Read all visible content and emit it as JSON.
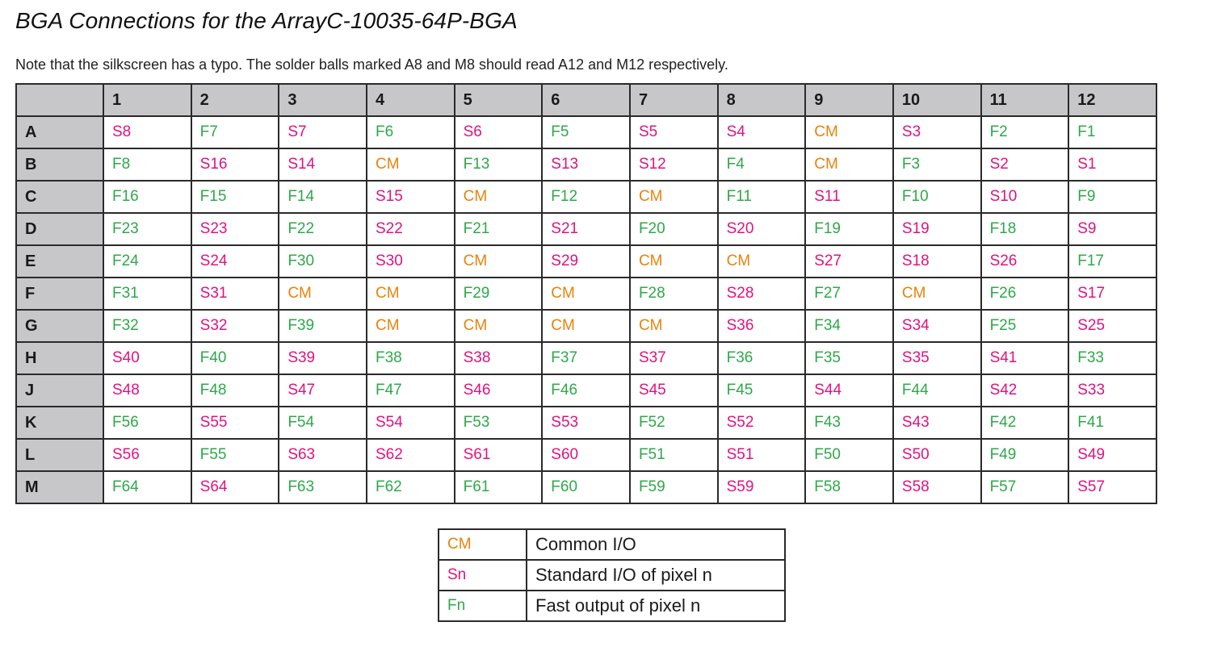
{
  "title": "BGA Connections for the ArrayC-10035-64P-BGA",
  "note": "Note that the silkscreen has a typo. The solder balls marked A8 and M8 should read A12 and M12 respectively.",
  "colors": {
    "CM": "#e8820c",
    "S": "#e0127f",
    "F": "#2ea84a",
    "header_bg": "#c7c7c9"
  },
  "grid": {
    "columns": [
      "1",
      "2",
      "3",
      "4",
      "5",
      "6",
      "7",
      "8",
      "9",
      "10",
      "11",
      "12"
    ],
    "rows": [
      {
        "label": "A",
        "cells": [
          "S8",
          "F7",
          "S7",
          "F6",
          "S6",
          "F5",
          "S5",
          "S4",
          "CM",
          "S3",
          "F2",
          "F1"
        ]
      },
      {
        "label": "B",
        "cells": [
          "F8",
          "S16",
          "S14",
          "CM",
          "F13",
          "S13",
          "S12",
          "F4",
          "CM",
          "F3",
          "S2",
          "S1"
        ]
      },
      {
        "label": "C",
        "cells": [
          "F16",
          "F15",
          "F14",
          "S15",
          "CM",
          "F12",
          "CM",
          "F11",
          "S11",
          "F10",
          "S10",
          "F9"
        ]
      },
      {
        "label": "D",
        "cells": [
          "F23",
          "S23",
          "F22",
          "S22",
          "F21",
          "S21",
          "F20",
          "S20",
          "F19",
          "S19",
          "F18",
          "S9"
        ]
      },
      {
        "label": "E",
        "cells": [
          "F24",
          "S24",
          "F30",
          "S30",
          "CM",
          "S29",
          "CM",
          "CM",
          "S27",
          "S18",
          "S26",
          "F17"
        ]
      },
      {
        "label": "F",
        "cells": [
          "F31",
          "S31",
          "CM",
          "CM",
          "F29",
          "CM",
          "F28",
          "S28",
          "F27",
          "CM",
          "F26",
          "S17"
        ]
      },
      {
        "label": "G",
        "cells": [
          "F32",
          "S32",
          "F39",
          "CM",
          "CM",
          "CM",
          "CM",
          "S36",
          "F34",
          "S34",
          "F25",
          "S25"
        ]
      },
      {
        "label": "H",
        "cells": [
          "S40",
          "F40",
          "S39",
          "F38",
          "S38",
          "F37",
          "S37",
          "F36",
          "F35",
          "S35",
          "S41",
          "F33"
        ]
      },
      {
        "label": "J",
        "cells": [
          "S48",
          "F48",
          "S47",
          "F47",
          "S46",
          "F46",
          "S45",
          "F45",
          "S44",
          "F44",
          "S42",
          "S33"
        ]
      },
      {
        "label": "K",
        "cells": [
          "F56",
          "S55",
          "F54",
          "S54",
          "F53",
          "S53",
          "F52",
          "S52",
          "F43",
          "S43",
          "F42",
          "F41"
        ]
      },
      {
        "label": "L",
        "cells": [
          "S56",
          "F55",
          "S63",
          "S62",
          "S61",
          "S60",
          "F51",
          "S51",
          "F50",
          "S50",
          "F49",
          "S49"
        ]
      },
      {
        "label": "M",
        "cells": [
          "F64",
          "S64",
          "F63",
          "F62",
          "F61",
          "F60",
          "F59",
          "S59",
          "F58",
          "S58",
          "F57",
          "S57"
        ]
      }
    ]
  },
  "legend": [
    {
      "key": "CM",
      "type": "CM",
      "description": "Common I/O"
    },
    {
      "key": "Sn",
      "type": "S",
      "description": "Standard I/O of pixel n"
    },
    {
      "key": "Fn",
      "type": "F",
      "description": "Fast output of pixel n"
    }
  ]
}
